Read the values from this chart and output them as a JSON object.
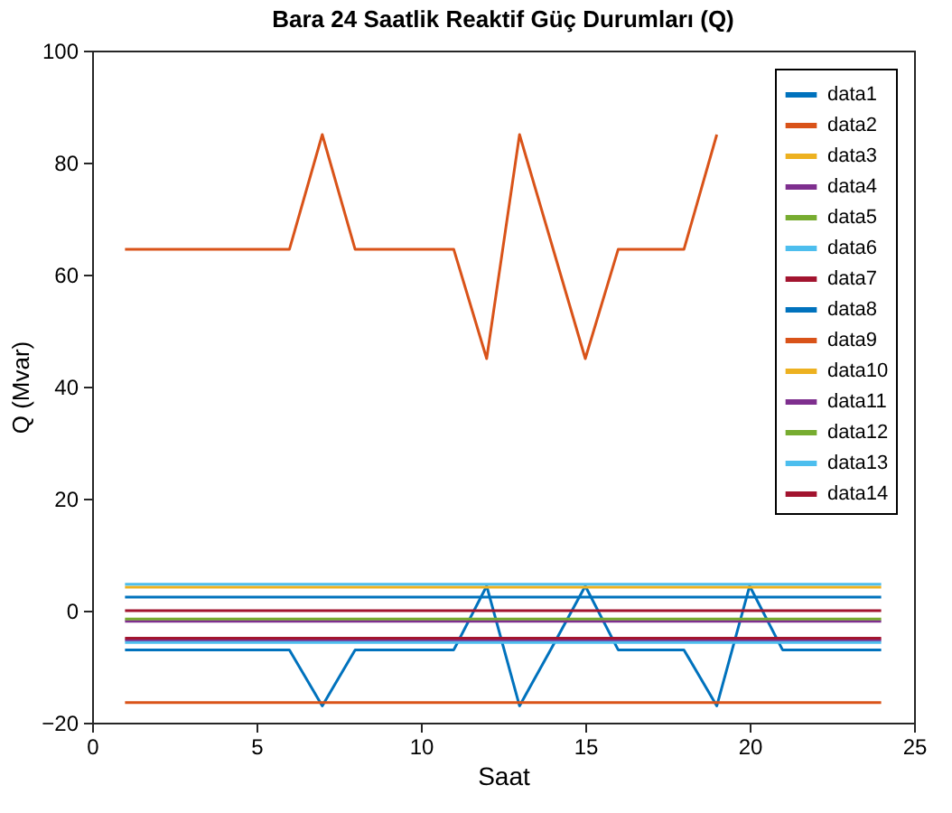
{
  "chart_data": {
    "type": "line",
    "title": "Bara 24 Saatlik Reaktif Güç Durumları (Q)",
    "xlabel": "Saat",
    "ylabel": "Q (Mvar)",
    "x": [
      1,
      2,
      3,
      4,
      5,
      6,
      7,
      8,
      9,
      10,
      11,
      12,
      13,
      14,
      15,
      16,
      17,
      18,
      19,
      20,
      21,
      22,
      23,
      24
    ],
    "xlim": [
      0,
      25
    ],
    "xticks": [
      0,
      5,
      10,
      15,
      20,
      25
    ],
    "ylim": [
      -20,
      100
    ],
    "yticks": [
      -20,
      0,
      20,
      40,
      60,
      80,
      100
    ],
    "grid": false,
    "legend": "top right",
    "marker": "none",
    "line_style": "solid",
    "series": [
      {
        "name": "data1",
        "color": "#0072bd",
        "values": [
          -7,
          -7,
          -7,
          -7,
          -7,
          -7,
          -17,
          -7,
          -7,
          -7,
          -7,
          4.4,
          -17,
          -6.4,
          4.4,
          -7,
          -7,
          -7,
          -17,
          4.4,
          -7,
          -7,
          -7,
          -7
        ]
      },
      {
        "name": "data2",
        "color": "#d95319",
        "values": [
          64.5,
          64.5,
          64.5,
          64.5,
          64.5,
          64.5,
          85,
          64.5,
          64.5,
          64.5,
          64.5,
          45,
          85,
          65,
          45,
          64.5,
          64.5,
          64.5,
          85,
          null,
          null,
          null,
          null,
          null
        ]
      },
      {
        "name": "data3",
        "color": "#edb120",
        "values": [
          4.2,
          4.2,
          4.2,
          4.2,
          4.2,
          4.2,
          4.2,
          4.2,
          4.2,
          4.2,
          4.2,
          4.2,
          4.2,
          4.2,
          4.2,
          4.2,
          4.2,
          4.2,
          4.2,
          4.2,
          4.2,
          4.2,
          4.2,
          4.2
        ]
      },
      {
        "name": "data4",
        "color": "#7e2f8e",
        "values": [
          -1.9,
          -1.9,
          -1.9,
          -1.9,
          -1.9,
          -1.9,
          -1.9,
          -1.9,
          -1.9,
          -1.9,
          -1.9,
          -1.9,
          -1.9,
          -1.9,
          -1.9,
          -1.9,
          -1.9,
          -1.9,
          -1.9,
          -1.9,
          -1.9,
          -1.9,
          -1.9,
          -1.9
        ]
      },
      {
        "name": "data5",
        "color": "#77ac30",
        "values": [
          -1.5,
          -1.5,
          -1.5,
          -1.5,
          -1.5,
          -1.5,
          -1.5,
          -1.5,
          -1.5,
          -1.5,
          -1.5,
          -1.5,
          -1.5,
          -1.5,
          -1.5,
          -1.5,
          -1.5,
          -1.5,
          -1.5,
          -1.5,
          -1.5,
          -1.5,
          -1.5,
          -1.5
        ]
      },
      {
        "name": "data6",
        "color": "#4dbeee",
        "values": [
          4.7,
          4.7,
          4.7,
          4.7,
          4.7,
          4.7,
          4.7,
          4.7,
          4.7,
          4.7,
          4.7,
          4.7,
          4.7,
          4.7,
          4.7,
          4.7,
          4.7,
          4.7,
          4.7,
          4.7,
          4.7,
          4.7,
          4.7,
          4.7
        ]
      },
      {
        "name": "data7",
        "color": "#a2142f",
        "values": [
          0,
          0,
          0,
          0,
          0,
          0,
          0,
          0,
          0,
          0,
          0,
          0,
          0,
          0,
          0,
          0,
          0,
          0,
          0,
          0,
          0,
          0,
          0,
          0
        ]
      },
      {
        "name": "data8",
        "color": "#0072bd",
        "values": [
          2.4,
          2.4,
          2.4,
          2.4,
          2.4,
          2.4,
          2.4,
          2.4,
          2.4,
          2.4,
          2.4,
          2.4,
          2.4,
          2.4,
          2.4,
          2.4,
          2.4,
          2.4,
          2.4,
          2.4,
          2.4,
          2.4,
          2.4,
          2.4
        ]
      },
      {
        "name": "data9",
        "color": "#d95319",
        "values": [
          -16.4,
          -16.4,
          -16.4,
          -16.4,
          -16.4,
          -16.4,
          -16.4,
          -16.4,
          -16.4,
          -16.4,
          -16.4,
          -16.4,
          -16.4,
          -16.4,
          -16.4,
          -16.4,
          -16.4,
          -16.4,
          -16.4,
          -16.4,
          -16.4,
          -16.4,
          -16.4,
          -16.4
        ]
      },
      {
        "name": "data10",
        "color": "#edb120",
        "values": [
          null,
          null,
          null,
          null,
          null,
          null,
          null,
          null,
          null,
          null,
          null,
          null,
          null,
          null,
          null,
          null,
          null,
          null,
          null,
          null,
          null,
          null,
          null,
          null
        ]
      },
      {
        "name": "data11",
        "color": "#7e2f8e",
        "values": [
          -5.3,
          -5.3,
          -5.3,
          -5.3,
          -5.3,
          -5.3,
          -5.3,
          -5.3,
          -5.3,
          -5.3,
          -5.3,
          -5.3,
          -5.3,
          -5.3,
          -5.3,
          -5.3,
          -5.3,
          -5.3,
          -5.3,
          -5.3,
          -5.3,
          -5.3,
          -5.3,
          -5.3
        ]
      },
      {
        "name": "data12",
        "color": "#77ac30",
        "values": [
          null,
          null,
          null,
          null,
          null,
          null,
          null,
          null,
          null,
          null,
          null,
          null,
          null,
          null,
          null,
          null,
          null,
          null,
          null,
          null,
          null,
          null,
          null,
          null
        ]
      },
      {
        "name": "data13",
        "color": "#4dbeee",
        "values": [
          -5.7,
          -5.7,
          -5.7,
          -5.7,
          -5.7,
          -5.7,
          -5.7,
          -5.7,
          -5.7,
          -5.7,
          -5.7,
          -5.7,
          -5.7,
          -5.7,
          -5.7,
          -5.7,
          -5.7,
          -5.7,
          -5.7,
          -5.7,
          -5.7,
          -5.7,
          -5.7,
          -5.7
        ]
      },
      {
        "name": "data14",
        "color": "#a2142f",
        "values": [
          -4.9,
          -4.9,
          -4.9,
          -4.9,
          -4.9,
          -4.9,
          -4.9,
          -4.9,
          -4.9,
          -4.9,
          -4.9,
          -4.9,
          -4.9,
          -4.9,
          -4.9,
          -4.9,
          -4.9,
          -4.9,
          -4.9,
          -4.9,
          -4.9,
          -4.9,
          -4.9,
          -4.9
        ]
      }
    ]
  }
}
